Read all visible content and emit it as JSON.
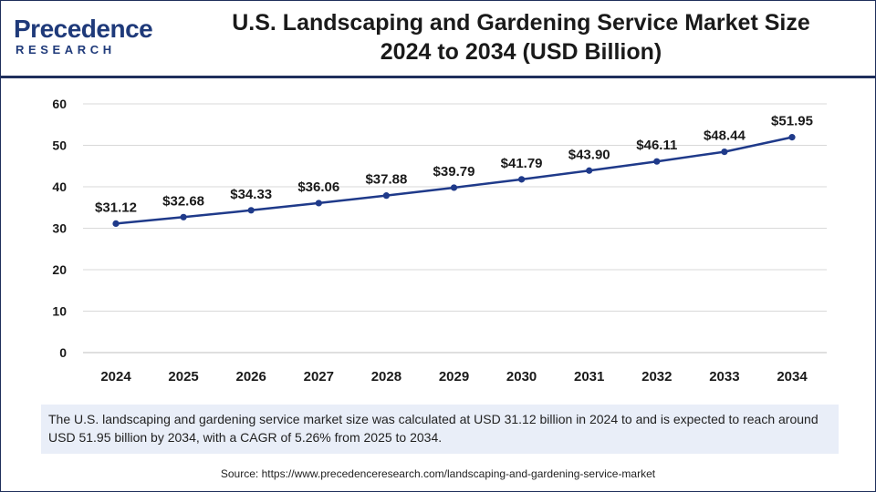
{
  "brand": {
    "name": "Precedence",
    "tagline": "RESEARCH"
  },
  "title_line1": "U.S. Landscaping and Gardening Service Market Size",
  "title_line2": "2024 to 2034 (USD Billion)",
  "colors": {
    "line": "#1f3a8a",
    "point": "#1f3a8a",
    "grid": "#d9d9d9",
    "brand": "#1f3a7a",
    "caption_bg": "#e9eef8"
  },
  "chart_data": {
    "type": "line",
    "title": "U.S. Landscaping and Gardening Service Market Size 2024 to 2034 (USD Billion)",
    "categories": [
      "2024",
      "2025",
      "2026",
      "2027",
      "2028",
      "2029",
      "2030",
      "2031",
      "2032",
      "2033",
      "2034"
    ],
    "series": [
      {
        "values": [
          31.12,
          32.68,
          34.33,
          36.06,
          37.88,
          39.79,
          41.79,
          43.9,
          46.11,
          48.44,
          51.95
        ]
      }
    ],
    "data_labels": [
      "$31.12",
      "$32.68",
      "$34.33",
      "$36.06",
      "$37.88",
      "$39.79",
      "$41.79",
      "$43.90",
      "$46.11",
      "$48.44",
      "$51.95"
    ],
    "yticks": [
      "0",
      "10",
      "20",
      "30",
      "40",
      "50",
      "60"
    ],
    "ylim": [
      0,
      60
    ],
    "grid": true,
    "legend": "none"
  },
  "caption": "The U.S. landscaping and gardening service market size was calculated at USD 31.12 billion in 2024 to and is expected to reach around USD 51.95 billion by 2034, with a CAGR of 5.26% from 2025 to 2034.",
  "source": "Source: https://www.precedenceresearch.com/landscaping-and-gardening-service-market"
}
